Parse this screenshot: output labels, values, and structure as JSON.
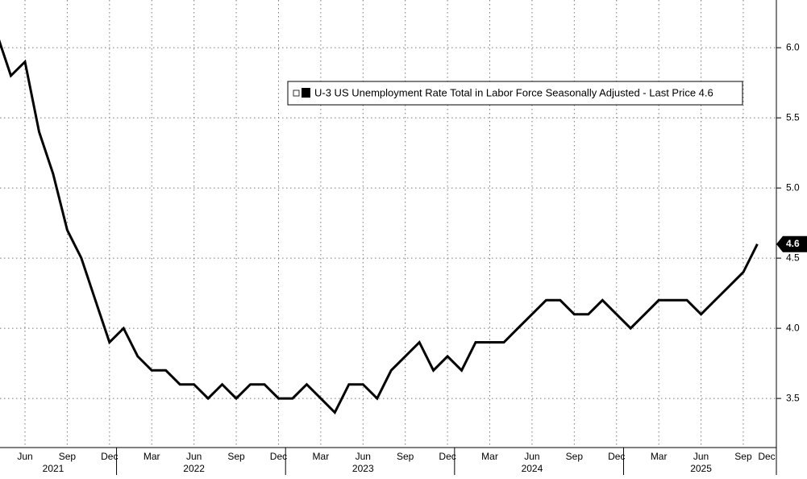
{
  "chart_data": {
    "type": "line",
    "legend_text": "U-3 US Unemployment Rate Total in Labor Force Seasonally Adjusted - Last Price 4.6",
    "x": [
      "2021-04",
      "2021-05",
      "2021-06",
      "2021-07",
      "2021-08",
      "2021-09",
      "2021-10",
      "2021-11",
      "2021-12",
      "2022-01",
      "2022-02",
      "2022-03",
      "2022-04",
      "2022-05",
      "2022-06",
      "2022-07",
      "2022-08",
      "2022-09",
      "2022-10",
      "2022-11",
      "2022-12",
      "2023-01",
      "2023-02",
      "2023-03",
      "2023-04",
      "2023-05",
      "2023-06",
      "2023-07",
      "2023-08",
      "2023-09",
      "2023-10",
      "2023-11",
      "2023-12",
      "2024-01",
      "2024-02",
      "2024-03",
      "2024-04",
      "2024-05",
      "2024-06",
      "2024-07",
      "2024-08",
      "2024-09",
      "2024-10",
      "2024-11",
      "2024-12",
      "2025-01",
      "2025-02",
      "2025-03",
      "2025-04",
      "2025-05",
      "2025-06",
      "2025-07",
      "2025-08",
      "2025-09",
      "2025-10"
    ],
    "series": [
      {
        "name": "U-3 US Unemployment Rate",
        "color": "#000000",
        "values": [
          6.1,
          5.8,
          5.9,
          5.4,
          5.1,
          4.7,
          4.5,
          4.2,
          3.9,
          4.0,
          3.8,
          3.7,
          3.7,
          3.6,
          3.6,
          3.5,
          3.6,
          3.5,
          3.6,
          3.6,
          3.5,
          3.5,
          3.6,
          3.5,
          3.4,
          3.6,
          3.6,
          3.5,
          3.7,
          3.8,
          3.9,
          3.7,
          3.8,
          3.7,
          3.9,
          3.9,
          3.9,
          4.0,
          4.1,
          4.2,
          4.2,
          4.1,
          4.1,
          4.2,
          4.1,
          4.0,
          4.1,
          4.2,
          4.2,
          4.2,
          4.1,
          4.2,
          4.3,
          4.4,
          4.6
        ]
      }
    ],
    "ylim": [
      3.15,
      6.34
    ],
    "yticks": [
      {
        "value": 3.5,
        "label": "3.5"
      },
      {
        "value": 4.0,
        "label": "4.0"
      },
      {
        "value": 4.5,
        "label": "4.5"
      },
      {
        "value": 5.0,
        "label": "5.0"
      },
      {
        "value": 5.5,
        "label": "5.5"
      },
      {
        "value": 6.0,
        "label": "6.0"
      }
    ],
    "xticks": [
      {
        "value": "2021-06",
        "label": "Jun"
      },
      {
        "value": "2021-09",
        "label": "Sep"
      },
      {
        "value": "2021-12",
        "label": "Dec"
      },
      {
        "value": "2022-03",
        "label": "Mar"
      },
      {
        "value": "2022-06",
        "label": "Jun"
      },
      {
        "value": "2022-09",
        "label": "Sep"
      },
      {
        "value": "2022-12",
        "label": "Dec"
      },
      {
        "value": "2023-03",
        "label": "Mar"
      },
      {
        "value": "2023-06",
        "label": "Jun"
      },
      {
        "value": "2023-09",
        "label": "Sep"
      },
      {
        "value": "2023-12",
        "label": "Dec"
      },
      {
        "value": "2024-03",
        "label": "Mar"
      },
      {
        "value": "2024-06",
        "label": "Jun"
      },
      {
        "value": "2024-09",
        "label": "Sep"
      },
      {
        "value": "2024-12",
        "label": "Dec"
      },
      {
        "value": "2025-03",
        "label": "Mar"
      },
      {
        "value": "2025-06",
        "label": "Jun"
      },
      {
        "value": "2025-09",
        "label": "Sep"
      },
      {
        "value": "2025-12",
        "label": "Dec"
      }
    ],
    "year_labels": [
      {
        "value": "2021-06",
        "label": "2021"
      },
      {
        "value": "2022-06",
        "label": "2022"
      },
      {
        "value": "2023-06",
        "label": "2023"
      },
      {
        "value": "2024-06",
        "label": "2024"
      },
      {
        "value": "2025-06",
        "label": "2025"
      }
    ],
    "grid": true
  }
}
